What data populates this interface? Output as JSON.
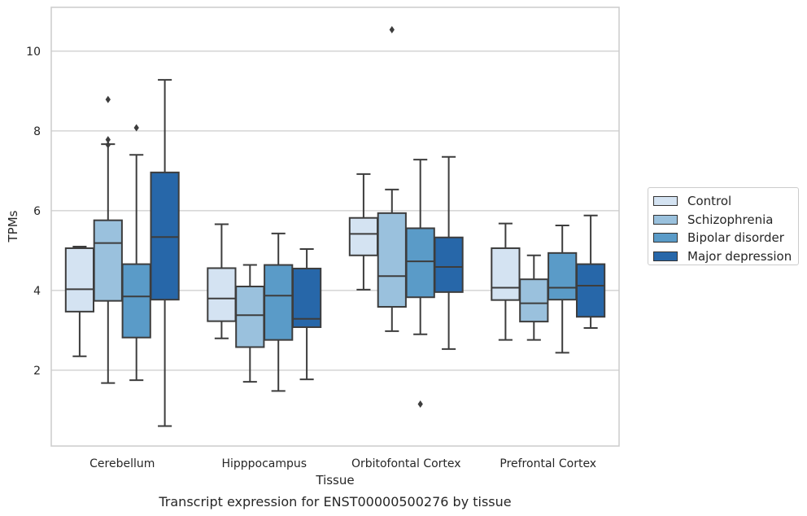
{
  "chart_data": {
    "type": "boxplot",
    "title": "Transcript expression for ENST00000500276 by tissue",
    "xlabel": "Tissue",
    "ylabel": "TPMs",
    "ylim": [
      0.1,
      11.1
    ],
    "yticks": [
      2,
      4,
      6,
      8,
      10
    ],
    "grid": "horizontal",
    "legend_position": "right",
    "categories": [
      "Cerebellum",
      "Hipppocampus",
      "Orbitofontal Cortex",
      "Prefrontal Cortex"
    ],
    "series": [
      {
        "name": "Control",
        "color": "#d4e3f2",
        "boxes": [
          {
            "whislo": 2.35,
            "q1": 3.47,
            "med": 4.03,
            "q3": 5.06,
            "whishi": 5.1,
            "fliers": []
          },
          {
            "whislo": 2.8,
            "q1": 3.23,
            "med": 3.8,
            "q3": 4.56,
            "whishi": 5.66,
            "fliers": []
          },
          {
            "whislo": 4.02,
            "q1": 4.88,
            "med": 5.42,
            "q3": 5.82,
            "whishi": 6.92,
            "fliers": []
          },
          {
            "whislo": 2.76,
            "q1": 3.76,
            "med": 4.07,
            "q3": 5.06,
            "whishi": 5.68,
            "fliers": []
          }
        ]
      },
      {
        "name": "Schizophrenia",
        "color": "#9ac1dd",
        "boxes": [
          {
            "whislo": 1.68,
            "q1": 3.74,
            "med": 5.19,
            "q3": 5.76,
            "whishi": 7.67,
            "fliers": [
              7.65,
              7.78,
              8.79
            ]
          },
          {
            "whislo": 1.71,
            "q1": 2.58,
            "med": 3.38,
            "q3": 4.1,
            "whishi": 4.64,
            "fliers": []
          },
          {
            "whislo": 2.98,
            "q1": 3.59,
            "med": 4.36,
            "q3": 5.94,
            "whishi": 6.53,
            "fliers": [
              10.54
            ]
          },
          {
            "whislo": 2.76,
            "q1": 3.22,
            "med": 3.68,
            "q3": 4.28,
            "whishi": 4.88,
            "fliers": []
          }
        ]
      },
      {
        "name": "Bipolar disorder",
        "color": "#5a9bc8",
        "boxes": [
          {
            "whislo": 1.75,
            "q1": 2.82,
            "med": 3.85,
            "q3": 4.66,
            "whishi": 7.4,
            "fliers": [
              8.08
            ]
          },
          {
            "whislo": 1.48,
            "q1": 2.76,
            "med": 3.87,
            "q3": 4.64,
            "whishi": 5.43,
            "fliers": []
          },
          {
            "whislo": 2.9,
            "q1": 3.83,
            "med": 4.73,
            "q3": 5.56,
            "whishi": 7.28,
            "fliers": [
              1.15
            ]
          },
          {
            "whislo": 2.44,
            "q1": 3.77,
            "med": 4.07,
            "q3": 4.94,
            "whishi": 5.63,
            "fliers": []
          }
        ]
      },
      {
        "name": "Major depression",
        "color": "#2767a9",
        "boxes": [
          {
            "whislo": 0.6,
            "q1": 3.77,
            "med": 5.34,
            "q3": 6.96,
            "whishi": 9.28,
            "fliers": []
          },
          {
            "whislo": 1.77,
            "q1": 3.08,
            "med": 3.29,
            "q3": 4.55,
            "whishi": 5.04,
            "fliers": []
          },
          {
            "whislo": 2.53,
            "q1": 3.96,
            "med": 4.59,
            "q3": 5.33,
            "whishi": 7.35,
            "fliers": []
          },
          {
            "whislo": 3.06,
            "q1": 3.34,
            "med": 4.12,
            "q3": 4.66,
            "whishi": 5.88,
            "fliers": []
          }
        ]
      }
    ]
  }
}
